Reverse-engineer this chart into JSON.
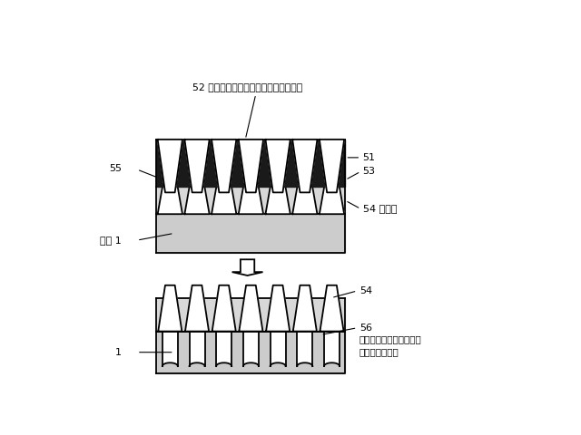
{
  "top_label": "52 テーパー状ピラーを有するモールド",
  "label_51": "51",
  "label_53": "53",
  "label_54_top": "54 マスク",
  "label_55": "55",
  "label_base_top": "基材 1",
  "label_54_bot": "54",
  "label_56": "56",
  "label_1": "1",
  "label_elec": "電気化学プロセスにより\n形成された細孔",
  "mold_color": "#1a1a1a",
  "mask_color": "#d8d8d8",
  "base_color": "#cccccc",
  "line_color": "#000000",
  "num_pillars": 7
}
